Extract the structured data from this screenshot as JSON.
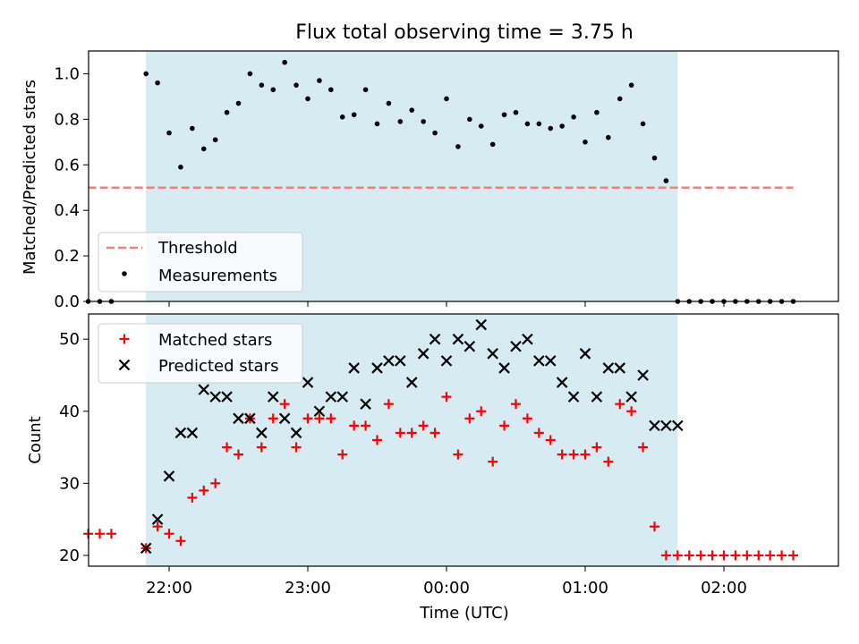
{
  "title": "Flux total observing time = 3.75 h",
  "colors": {
    "shade": "#add8e6",
    "threshold": "#f08080",
    "measurement": "#000000",
    "matched": "#ff0000",
    "predicted": "#000000"
  },
  "chart_data": [
    {
      "type": "scatter",
      "ylabel": "Matched/Predicted stars",
      "ylim": [
        0,
        1.1
      ],
      "yticks": [
        0.0,
        0.2,
        0.4,
        0.6,
        0.8,
        1.0
      ],
      "ytick_labels": [
        "0.0",
        "0.2",
        "0.4",
        "0.6",
        "0.8",
        "1.0"
      ],
      "shaded_span": [
        "21:50",
        "01:40"
      ],
      "legend_position": "lower-left",
      "threshold": {
        "name": "Threshold",
        "value": 0.5,
        "x_range": [
          "21:25",
          "02:30"
        ]
      },
      "series": [
        {
          "name": "Measurements",
          "x": [
            "21:25",
            "21:30",
            "21:35",
            "21:50",
            "21:55",
            "22:00",
            "22:05",
            "22:10",
            "22:15",
            "22:20",
            "22:25",
            "22:30",
            "22:35",
            "22:40",
            "22:45",
            "22:50",
            "22:55",
            "23:00",
            "23:05",
            "23:10",
            "23:15",
            "23:20",
            "23:25",
            "23:30",
            "23:35",
            "23:40",
            "23:45",
            "23:50",
            "23:55",
            "00:00",
            "00:05",
            "00:10",
            "00:15",
            "00:20",
            "00:25",
            "00:30",
            "00:35",
            "00:40",
            "00:45",
            "00:50",
            "00:55",
            "01:00",
            "01:05",
            "01:10",
            "01:15",
            "01:20",
            "01:25",
            "01:30",
            "01:35",
            "01:40",
            "01:45",
            "01:50",
            "01:55",
            "02:00",
            "02:05",
            "02:10",
            "02:15",
            "02:20",
            "02:25",
            "02:30"
          ],
          "y": [
            0,
            0,
            0,
            1.0,
            0.96,
            0.74,
            0.59,
            0.76,
            0.67,
            0.71,
            0.83,
            0.87,
            1.0,
            0.95,
            0.93,
            1.05,
            0.95,
            0.89,
            0.97,
            0.93,
            0.81,
            0.82,
            0.93,
            0.78,
            0.87,
            0.79,
            0.84,
            0.79,
            0.74,
            0.89,
            0.68,
            0.8,
            0.77,
            0.69,
            0.82,
            0.83,
            0.78,
            0.78,
            0.76,
            0.77,
            0.81,
            0.7,
            0.83,
            0.72,
            0.89,
            0.95,
            0.78,
            0.63,
            0.53,
            0,
            0,
            0,
            0,
            0,
            0,
            0,
            0,
            0,
            0,
            0
          ]
        }
      ]
    },
    {
      "type": "scatter",
      "xlabel": "Time (UTC)",
      "ylabel": "Count",
      "ylim": [
        18.5,
        53.5
      ],
      "yticks": [
        20,
        30,
        40,
        50
      ],
      "ytick_labels": [
        "20",
        "30",
        "40",
        "50"
      ],
      "xticks": [
        "22:00",
        "23:00",
        "00:00",
        "01:00",
        "02:00"
      ],
      "shaded_span": [
        "21:50",
        "01:40"
      ],
      "legend_position": "upper-left",
      "series": [
        {
          "name": "Matched stars",
          "marker": "+",
          "x": [
            "21:25",
            "21:30",
            "21:35",
            "21:50",
            "21:55",
            "22:00",
            "22:05",
            "22:10",
            "22:15",
            "22:20",
            "22:25",
            "22:30",
            "22:35",
            "22:40",
            "22:45",
            "22:50",
            "22:55",
            "23:00",
            "23:05",
            "23:10",
            "23:15",
            "23:20",
            "23:25",
            "23:30",
            "23:35",
            "23:40",
            "23:45",
            "23:50",
            "23:55",
            "00:00",
            "00:05",
            "00:10",
            "00:15",
            "00:20",
            "00:25",
            "00:30",
            "00:35",
            "00:40",
            "00:45",
            "00:50",
            "00:55",
            "01:00",
            "01:05",
            "01:10",
            "01:15",
            "01:20",
            "01:25",
            "01:30",
            "01:35",
            "01:40",
            "01:45",
            "01:50",
            "01:55",
            "02:00",
            "02:05",
            "02:10",
            "02:15",
            "02:20",
            "02:25",
            "02:30"
          ],
          "y": [
            23,
            23,
            23,
            21,
            24,
            23,
            22,
            28,
            29,
            30,
            35,
            34,
            39,
            35,
            39,
            41,
            35,
            39,
            39,
            39,
            34,
            38,
            38,
            36,
            41,
            37,
            37,
            38,
            37,
            42,
            34,
            39,
            40,
            33,
            38,
            41,
            39,
            37,
            36,
            34,
            34,
            34,
            35,
            33,
            41,
            40,
            35,
            24,
            20,
            20,
            20,
            20,
            20,
            20,
            20,
            20,
            20,
            20,
            20,
            20
          ]
        },
        {
          "name": "Predicted stars",
          "marker": "x",
          "x": [
            "21:50",
            "21:55",
            "22:00",
            "22:05",
            "22:10",
            "22:15",
            "22:20",
            "22:25",
            "22:30",
            "22:35",
            "22:40",
            "22:45",
            "22:50",
            "22:55",
            "23:00",
            "23:05",
            "23:10",
            "23:15",
            "23:20",
            "23:25",
            "23:30",
            "23:35",
            "23:40",
            "23:45",
            "23:50",
            "23:55",
            "00:00",
            "00:05",
            "00:10",
            "00:15",
            "00:20",
            "00:25",
            "00:30",
            "00:35",
            "00:40",
            "00:45",
            "00:50",
            "00:55",
            "01:00",
            "01:05",
            "01:10",
            "01:15",
            "01:20",
            "01:25",
            "01:30",
            "01:35",
            "01:40"
          ],
          "y": [
            21,
            25,
            31,
            37,
            37,
            43,
            42,
            42,
            39,
            39,
            37,
            42,
            39,
            37,
            44,
            40,
            42,
            42,
            46,
            41,
            46,
            47,
            47,
            44,
            48,
            50,
            47,
            50,
            49,
            52,
            48,
            46,
            49,
            50,
            47,
            47,
            44,
            42,
            48,
            42,
            46,
            46,
            42,
            45,
            38,
            38,
            38
          ]
        }
      ]
    }
  ]
}
